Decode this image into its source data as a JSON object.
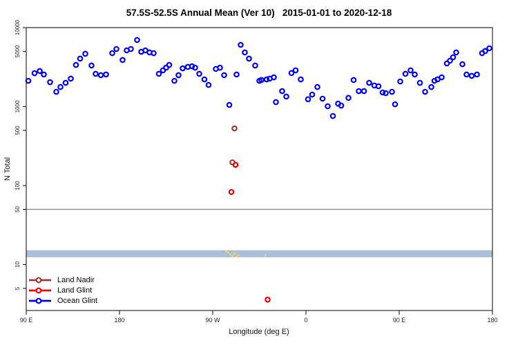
{
  "legend": {
    "items": [
      {
        "label": "Land Nadir",
        "color": "#9c3a32"
      },
      {
        "label": "Land Glint",
        "color": "#ee0000"
      },
      {
        "label": "Ocean Glint",
        "color": "#0000ee"
      }
    ]
  },
  "chart_data": {
    "type": "scatter",
    "title": "57.5S-52.5S Annual Mean (Ver 10)   2015-01-01 to 2020-12-18",
    "xlabel": "Longitude (deg E)",
    "ylabel": "N Total",
    "y_scale": "log",
    "ylim": [
      2.6,
      10000
    ],
    "y_ticks": [
      10000,
      5000,
      1000,
      500,
      100,
      50,
      10,
      5
    ],
    "x_axis": {
      "span_deg": 450,
      "ticks": [
        {
          "pos": 0,
          "label": "90 E"
        },
        {
          "pos": 90,
          "label": "180"
        },
        {
          "pos": 180,
          "label": "90 W"
        },
        {
          "pos": 270,
          "label": "0"
        },
        {
          "pos": 360,
          "label": "90 E"
        },
        {
          "pos": 450,
          "label": "180"
        }
      ]
    },
    "reference_line": {
      "value": 50,
      "color": "#8a8a8a"
    },
    "band": {
      "value_min": 12.4,
      "value_max": 15.2,
      "color": "#aabdd9"
    },
    "series": [
      {
        "name": "Ocean Glint",
        "color": "#0000ee",
        "marker": "open-circle",
        "points": [
          [
            2,
            2120
          ],
          [
            8,
            2650
          ],
          [
            13,
            2820
          ],
          [
            17,
            2550
          ],
          [
            23,
            2040
          ],
          [
            29,
            1540
          ],
          [
            33,
            1770
          ],
          [
            38,
            2000
          ],
          [
            43,
            2260
          ],
          [
            48,
            3370
          ],
          [
            52,
            4050
          ],
          [
            57,
            4660
          ],
          [
            63,
            3310
          ],
          [
            67,
            2600
          ],
          [
            72,
            2500
          ],
          [
            77,
            2550
          ],
          [
            83,
            4750
          ],
          [
            87,
            5360
          ],
          [
            93,
            3890
          ],
          [
            97,
            5150
          ],
          [
            101,
            5360
          ],
          [
            107,
            6970
          ],
          [
            111,
            4940
          ],
          [
            115,
            5150
          ],
          [
            119,
            4850
          ],
          [
            123,
            4750
          ],
          [
            128,
            2600
          ],
          [
            132,
            2880
          ],
          [
            135,
            3110
          ],
          [
            138,
            3370
          ],
          [
            143,
            2120
          ],
          [
            147,
            2500
          ],
          [
            151,
            3050
          ],
          [
            156,
            3180
          ],
          [
            160,
            3240
          ],
          [
            163,
            3110
          ],
          [
            167,
            2600
          ],
          [
            172,
            2210
          ],
          [
            176,
            1880
          ],
          [
            183,
            3000
          ],
          [
            187,
            3110
          ],
          [
            191,
            2500
          ],
          [
            196,
            1050
          ],
          [
            203,
            2550
          ],
          [
            207,
            6050
          ],
          [
            211,
            4850
          ],
          [
            215,
            4050
          ],
          [
            221,
            3310
          ],
          [
            225,
            2120
          ],
          [
            227,
            2170
          ],
          [
            232,
            2210
          ],
          [
            235,
            2260
          ],
          [
            239,
            2350
          ],
          [
            241,
            1140
          ],
          [
            247,
            1570
          ],
          [
            251,
            1340
          ],
          [
            256,
            2660
          ],
          [
            260,
            2880
          ],
          [
            265,
            2210
          ],
          [
            272,
            1240
          ],
          [
            276,
            1420
          ],
          [
            281,
            1770
          ],
          [
            286,
            1260
          ],
          [
            291,
            1010
          ],
          [
            296,
            760
          ],
          [
            301,
            1090
          ],
          [
            304,
            1030
          ],
          [
            311,
            1290
          ],
          [
            316,
            2170
          ],
          [
            321,
            1570
          ],
          [
            326,
            1570
          ],
          [
            331,
            2000
          ],
          [
            336,
            1850
          ],
          [
            340,
            1810
          ],
          [
            344,
            1510
          ],
          [
            347,
            1480
          ],
          [
            353,
            1540
          ],
          [
            356,
            1070
          ],
          [
            361,
            2080
          ],
          [
            366,
            2600
          ],
          [
            371,
            2880
          ],
          [
            375,
            2550
          ],
          [
            380,
            2000
          ],
          [
            385,
            1540
          ],
          [
            391,
            1770
          ],
          [
            394,
            2120
          ],
          [
            397,
            2210
          ],
          [
            401,
            2350
          ],
          [
            406,
            3520
          ],
          [
            409,
            3810
          ],
          [
            412,
            4210
          ],
          [
            415,
            4850
          ],
          [
            421,
            3440
          ],
          [
            425,
            2550
          ],
          [
            430,
            2450
          ],
          [
            435,
            2550
          ],
          [
            440,
            4750
          ],
          [
            443,
            5050
          ],
          [
            447,
            5470
          ]
        ]
      },
      {
        "name": "Land Nadir",
        "color": "#9c3a32",
        "marker": "open-circle",
        "points": [
          [
            201,
            530
          ],
          [
            199,
            197
          ]
        ]
      },
      {
        "name": "Land Glint",
        "color": "#ee0000",
        "marker": "open-circle",
        "points": [
          [
            202,
            183
          ],
          [
            198,
            83
          ],
          [
            233,
            3.6
          ]
        ]
      }
    ],
    "small_marks": {
      "color": "#f2d674",
      "points": [
        [
          193,
          14.8
        ],
        [
          195,
          14.2
        ],
        [
          197,
          13.5
        ],
        [
          199,
          12.9
        ],
        [
          201,
          13.8
        ],
        [
          203,
          12.6
        ],
        [
          205,
          13.1
        ],
        [
          231,
          13.2
        ]
      ]
    }
  }
}
